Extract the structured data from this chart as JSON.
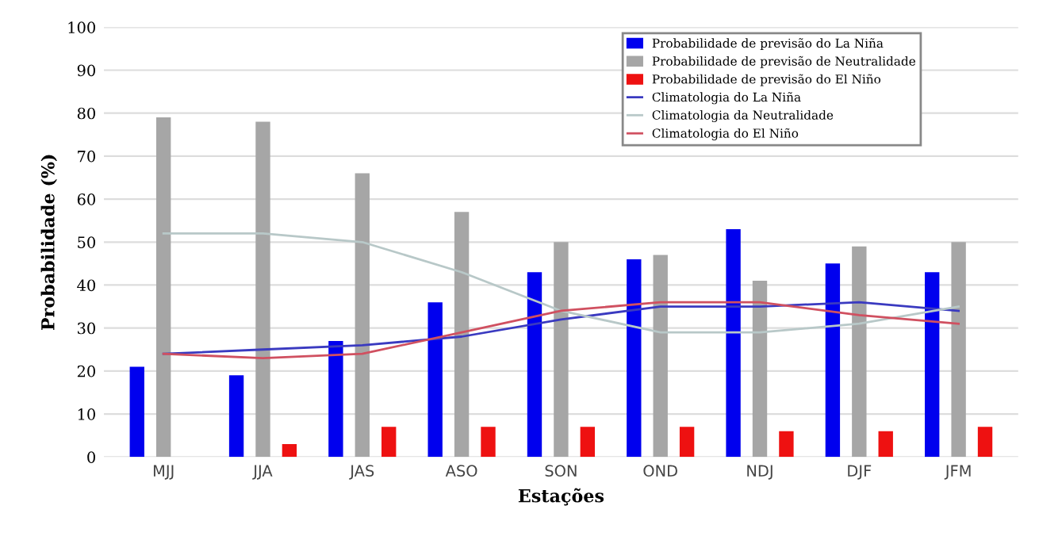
{
  "chart_data": {
    "type": "bar",
    "xlabel": "Estações",
    "ylabel": "Probabilidade (%)",
    "categories": [
      "MJJ",
      "JJA",
      "JAS",
      "ASO",
      "SON",
      "OND",
      "NDJ",
      "DJF",
      "JFM"
    ],
    "series": [
      {
        "name": "Probabilidade de previsão do La Niña",
        "color": "#0000ee",
        "values": [
          21,
          19,
          27,
          36,
          43,
          46,
          53,
          45,
          43
        ]
      },
      {
        "name": "Probabilidade de previsão de Neutralidade",
        "color": "#a6a6a6",
        "values": [
          79,
          78,
          66,
          57,
          50,
          47,
          41,
          49,
          50
        ]
      },
      {
        "name": "Probabilidade de previsão do El Niño",
        "color": "#ee1111",
        "values": [
          0,
          3,
          7,
          7,
          7,
          7,
          6,
          6,
          7
        ]
      },
      {
        "name": "Climatologia do La Niña",
        "type": "line",
        "color": "#3a3ac0",
        "values": [
          24,
          25,
          26,
          28,
          32,
          35,
          35,
          36,
          34
        ]
      },
      {
        "name": "Climatologia da Neutralidade",
        "type": "line",
        "color": "#b8c8c8",
        "values": [
          52,
          52,
          50,
          43,
          34,
          29,
          29,
          31,
          35
        ]
      },
      {
        "name": "Climatologia do El Niño",
        "type": "line",
        "color": "#d05060",
        "values": [
          24,
          23,
          24,
          29,
          34,
          36,
          36,
          33,
          31
        ]
      }
    ],
    "ylim": [
      0,
      100
    ],
    "yticks": [
      0,
      10,
      20,
      30,
      40,
      50,
      60,
      70,
      80,
      90,
      100
    ],
    "grid": "y",
    "legend": "top right"
  }
}
